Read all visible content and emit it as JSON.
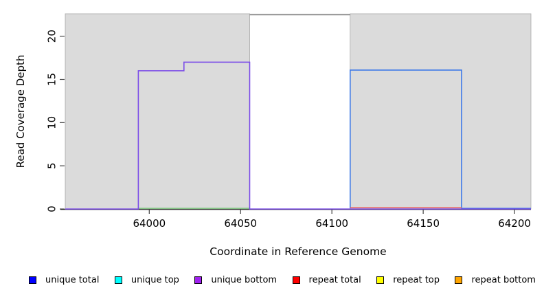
{
  "chart_data": {
    "type": "line",
    "title": "",
    "xlabel": "Coordinate in Reference Genome",
    "ylabel": "Read Coverage Depth",
    "xlim": [
      63954,
      64209
    ],
    "ylim": [
      0,
      22.6
    ],
    "x_ticks": [
      "64000",
      "64050",
      "64100",
      "64150",
      "64200"
    ],
    "x_tick_values": [
      64000,
      64050,
      64100,
      64150,
      64200
    ],
    "y_ticks": [
      "0",
      "5",
      "10",
      "15",
      "20"
    ],
    "y_tick_values": [
      0,
      5,
      10,
      15,
      20
    ],
    "grid": false,
    "legend_position": "bottom",
    "shaded_regions": [
      {
        "name": "shaded-region-left",
        "x0": 63954,
        "x1": 64055,
        "fill": "#dbdbdb",
        "border": "#a8a8a8"
      },
      {
        "name": "shaded-region-right",
        "x0": 64110,
        "x1": 64209,
        "fill": "#dbdbdb",
        "border": "#a8a8a8"
      }
    ],
    "series": [
      {
        "name": "unique-total",
        "color": "#3d79e8",
        "dy": -1,
        "width": 1.6,
        "points": [
          [
            64110,
            0
          ],
          [
            64110,
            16
          ],
          [
            64171,
            16
          ],
          [
            64171,
            0
          ],
          [
            64209,
            0
          ]
        ]
      },
      {
        "name": "baseline-green-segment",
        "color": "#74c476",
        "dy": -1,
        "width": 1.5,
        "points": [
          [
            63994,
            0
          ],
          [
            64055,
            0
          ]
        ]
      },
      {
        "name": "unique-bottom",
        "color": "#7a4be8",
        "dy": 0,
        "width": 1.6,
        "points": [
          [
            63954,
            0
          ],
          [
            63994,
            0
          ],
          [
            63994,
            16
          ],
          [
            64019,
            16
          ],
          [
            64019,
            17
          ],
          [
            64055,
            17
          ],
          [
            64055,
            0
          ],
          [
            64209,
            0
          ]
        ]
      },
      {
        "name": "repeat-total",
        "color": "#e86868",
        "dy": -2,
        "width": 1.5,
        "points": [
          [
            64110,
            0
          ],
          [
            64171,
            0
          ]
        ]
      },
      {
        "name": "clipped-total-top",
        "color": "#8a8a8a",
        "dy": 0,
        "width": 1.8,
        "points": [
          [
            64055,
            22.5
          ],
          [
            64110,
            22.5
          ]
        ]
      }
    ]
  },
  "legend": {
    "items": [
      {
        "label": "unique total",
        "color": "#0000ff"
      },
      {
        "label": "unique top",
        "color": "#00ffff"
      },
      {
        "label": "unique bottom",
        "color": "#a020f0"
      },
      {
        "label": "repeat total",
        "color": "#ff0000"
      },
      {
        "label": "repeat top",
        "color": "#ffff00"
      },
      {
        "label": "repeat bottom",
        "color": "#ffa500"
      }
    ]
  }
}
